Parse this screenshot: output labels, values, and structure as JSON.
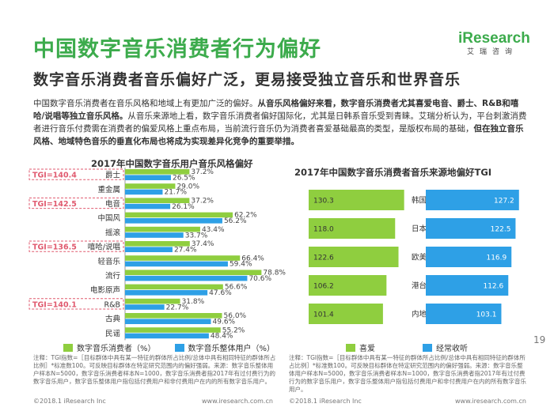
{
  "header": {
    "title": "中国数字音乐消费者行为偏好",
    "subtitle": "数字音乐消费者音乐偏好广泛，更易接受独立音乐和世界音乐",
    "logo_brand": "iResearch",
    "logo_cn": "艾瑞咨询"
  },
  "paragraph": {
    "part1": "中国数字音乐消费者在音乐风格和地域上有更加广泛的偏好。",
    "part2": "从音乐风格偏好来看，数字音乐消费者尤其喜爱电音、爵士、R&B和嘻哈/说唱等独立音乐风格。",
    "part3": "从音乐来源地上看，数字音乐消费者偏好国际化，尤其是日韩系音乐受到青睐。艾瑞分析认为，平台刺激消费者进行音乐付费需在消费者的偏爱风格上重点布局，当前流行音乐仍为消费者喜爱基础最高的类型，是版权布局的基础，",
    "part4": "但在独立音乐风格、地域特色音乐的垂直化布局也将成为实现差异化竞争的重要举措。"
  },
  "chart_data": [
    {
      "type": "bar",
      "title": "2017年中国数字音乐用户音乐风格偏好",
      "categories": [
        "爵士",
        "重金属",
        "电音",
        "中国风",
        "摇滚",
        "嘻哈/说唱",
        "轻音乐",
        "流行",
        "电影原声",
        "R&B",
        "古典",
        "民谣"
      ],
      "series": [
        {
          "name": "数字音乐消费者（%）",
          "color": "#8fce3f",
          "values": [
            37.2,
            29.0,
            37.2,
            62.2,
            43.4,
            37.4,
            66.4,
            78.8,
            56.6,
            31.8,
            56.0,
            55.2
          ]
        },
        {
          "name": "数字音乐整体用户（%）",
          "color": "#2ea0e6",
          "values": [
            26.5,
            21.7,
            26.1,
            56.2,
            33.7,
            27.4,
            59.4,
            70.6,
            47.6,
            22.7,
            49.6,
            48.4
          ]
        }
      ],
      "annotations": [
        {
          "category": "爵士",
          "text": "TGI=140.4"
        },
        {
          "category": "电音",
          "text": "TGI=142.5"
        },
        {
          "category": "嘻哈/说唱",
          "text": "TGI=136.5"
        },
        {
          "category": "R&B",
          "text": "TGI=140.1"
        }
      ],
      "xlim": [
        0,
        80
      ]
    },
    {
      "type": "bar",
      "title": "2017年中国数字音乐消费者音乐来源地偏好TGI",
      "categories": [
        "韩国",
        "日本",
        "欧美",
        "港台",
        "内地"
      ],
      "series": [
        {
          "name": "喜爱",
          "color": "#8fce3f",
          "values": [
            130.3,
            118.0,
            122.6,
            106.2,
            101.4
          ]
        },
        {
          "name": "经常收听",
          "color": "#2ea0e6",
          "values": [
            127.2,
            122.5,
            116.9,
            112.6,
            103.1
          ]
        }
      ],
      "xlim": [
        0,
        135
      ]
    }
  ],
  "left_legend": {
    "a": "数字音乐消费者（%）",
    "b": "数字音乐整体用户（%）"
  },
  "right_legend": {
    "a": "喜爱",
    "b": "经常收听"
  },
  "notes": {
    "left": "注释：TGI指数=［目标群体中具有某一特征的群体所占比例/总体中具有相同特征的群体所占比例］*标准数100。可反映目标群体在特定研究范围内的偏好强弱。来源：数字音乐整体用户样本N=5000，数字音乐消费者样本N=1000，数字音乐消费者指2017年有过付费行为的数字音乐用户，数字音乐整体用户指包括付费用户和非付费用户在内的所有数字音乐用户。",
    "right": "注释：TGI指数=［目标群体中具有某一特征的群体所占比例/总体中具有相同特征的群体所占比例］*标准数100。可反映目标群体在特定研究范围内的偏好强弱。来源：数字音乐整体用户样本N=5000，数字音乐消费者样本N=1000，数字音乐消费者指2017年有过付费行为的数字音乐用户，数字音乐整体用户指包括付费用户和非付费用户在内的所有数字音乐用户。"
  },
  "footer": {
    "left_copy": "©2018.1 iResearch Inc",
    "left_url": "www.iresearch.com.cn",
    "right_copy": "©2018.1 iResearch Inc",
    "right_url": "www.iresearch.com.cn",
    "page": "19"
  }
}
